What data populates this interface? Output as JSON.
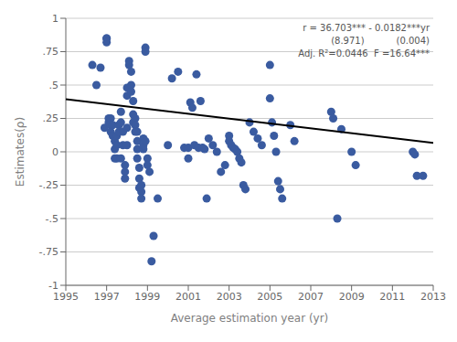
{
  "chart_data": {
    "type": "scatter",
    "title": "",
    "xlabel": "Average estimation year (yr)",
    "ylabel": "Estimates(ρ)",
    "xlim": [
      1995,
      2013
    ],
    "ylim": [
      -1,
      1
    ],
    "xticks": [
      1995,
      1997,
      1999,
      2001,
      2003,
      2005,
      2007,
      2009,
      2011,
      2013
    ],
    "yticks": [
      -1,
      {
        "value": -0.75,
        "label": "-.75"
      },
      {
        "value": -0.5,
        "label": "-.5"
      },
      {
        "value": -0.25,
        "label": "-.25"
      },
      0,
      {
        "value": 0.25,
        "label": ".25"
      },
      {
        "value": 0.5,
        "label": ".5"
      },
      {
        "value": 0.75,
        "label": ".75"
      },
      1
    ],
    "grid": "y",
    "annotations": [
      "r = 36.703*** - 0.0182***yr",
      "(8.971)           (0.004)",
      "Adj. R²=0.0446  F =16.64***"
    ],
    "series": [
      {
        "type": "scatter",
        "color": "#3A5BA0",
        "x": [
          1996.3,
          1996.5,
          1996.7,
          1996.9,
          1997.0,
          1997.0,
          1997.0,
          1997.1,
          1997.1,
          1997.2,
          1997.2,
          1997.2,
          1997.3,
          1997.3,
          1997.4,
          1997.4,
          1997.4,
          1997.5,
          1997.5,
          1997.5,
          1997.6,
          1997.6,
          1997.7,
          1997.7,
          1997.7,
          1997.8,
          1997.8,
          1997.9,
          1997.9,
          1997.9,
          1998.0,
          1998.0,
          1998.0,
          1998.0,
          1998.1,
          1998.1,
          1998.2,
          1998.2,
          1998.2,
          1998.3,
          1998.3,
          1998.3,
          1998.4,
          1998.4,
          1998.4,
          1998.5,
          1998.5,
          1998.5,
          1998.5,
          1998.6,
          1998.6,
          1998.6,
          1998.7,
          1998.7,
          1998.7,
          1998.8,
          1998.8,
          1998.8,
          1998.9,
          1998.9,
          1998.9,
          1999.0,
          1999.0,
          1999.1,
          1999.2,
          1999.3,
          1999.5,
          2000.0,
          2000.2,
          2000.5,
          2000.8,
          2001.0,
          2001.0,
          2001.1,
          2001.2,
          2001.3,
          2001.4,
          2001.5,
          2001.6,
          2001.7,
          2001.8,
          2001.9,
          2002.0,
          2002.2,
          2002.4,
          2002.6,
          2002.8,
          2003.0,
          2003.0,
          2003.1,
          2003.2,
          2003.3,
          2003.4,
          2003.5,
          2003.6,
          2003.7,
          2003.8,
          2004.0,
          2004.2,
          2004.4,
          2004.6,
          2005.0,
          2005.0,
          2005.1,
          2005.2,
          2005.3,
          2005.4,
          2005.5,
          2005.6,
          2006.0,
          2006.2,
          2008.0,
          2008.1,
          2008.3,
          2008.5,
          2009.0,
          2009.2,
          2012.0,
          2012.1,
          2012.2,
          2012.5
        ],
        "values": [
          0.65,
          0.5,
          0.63,
          0.18,
          0.85,
          0.85,
          0.82,
          0.25,
          0.22,
          0.25,
          0.2,
          0.15,
          0.2,
          0.12,
          0.08,
          0.02,
          -0.05,
          0.12,
          0.05,
          -0.05,
          0.2,
          0.15,
          0.3,
          0.22,
          -0.05,
          0.15,
          0.05,
          -0.1,
          -0.15,
          -0.2,
          0.48,
          0.42,
          0.18,
          0.05,
          0.68,
          0.65,
          0.6,
          0.5,
          0.45,
          0.38,
          0.28,
          0.22,
          0.25,
          0.2,
          0.15,
          0.15,
          0.08,
          0.02,
          -0.05,
          -0.12,
          -0.2,
          -0.27,
          -0.25,
          -0.3,
          -0.35,
          0.02,
          0.05,
          0.1,
          0.78,
          0.75,
          0.08,
          -0.05,
          -0.1,
          -0.15,
          -0.82,
          -0.63,
          -0.35,
          0.05,
          0.55,
          0.6,
          0.03,
          0.03,
          -0.05,
          0.37,
          0.33,
          0.05,
          0.58,
          0.03,
          0.38,
          0.03,
          0.02,
          -0.35,
          0.1,
          0.05,
          0.0,
          -0.15,
          -0.1,
          0.12,
          0.08,
          0.05,
          0.03,
          0.02,
          0.0,
          -0.05,
          -0.08,
          -0.25,
          -0.28,
          0.22,
          0.15,
          0.1,
          0.05,
          0.65,
          0.4,
          0.22,
          0.12,
          0.0,
          -0.22,
          -0.28,
          -0.35,
          0.2,
          0.08,
          0.3,
          0.25,
          -0.5,
          0.17,
          0.0,
          -0.1,
          0.0,
          -0.02,
          -0.18,
          -0.18
        ]
      },
      {
        "type": "line",
        "color": "black",
        "x": [
          1995,
          2013
        ],
        "values": [
          0.394,
          0.0664
        ]
      }
    ]
  }
}
